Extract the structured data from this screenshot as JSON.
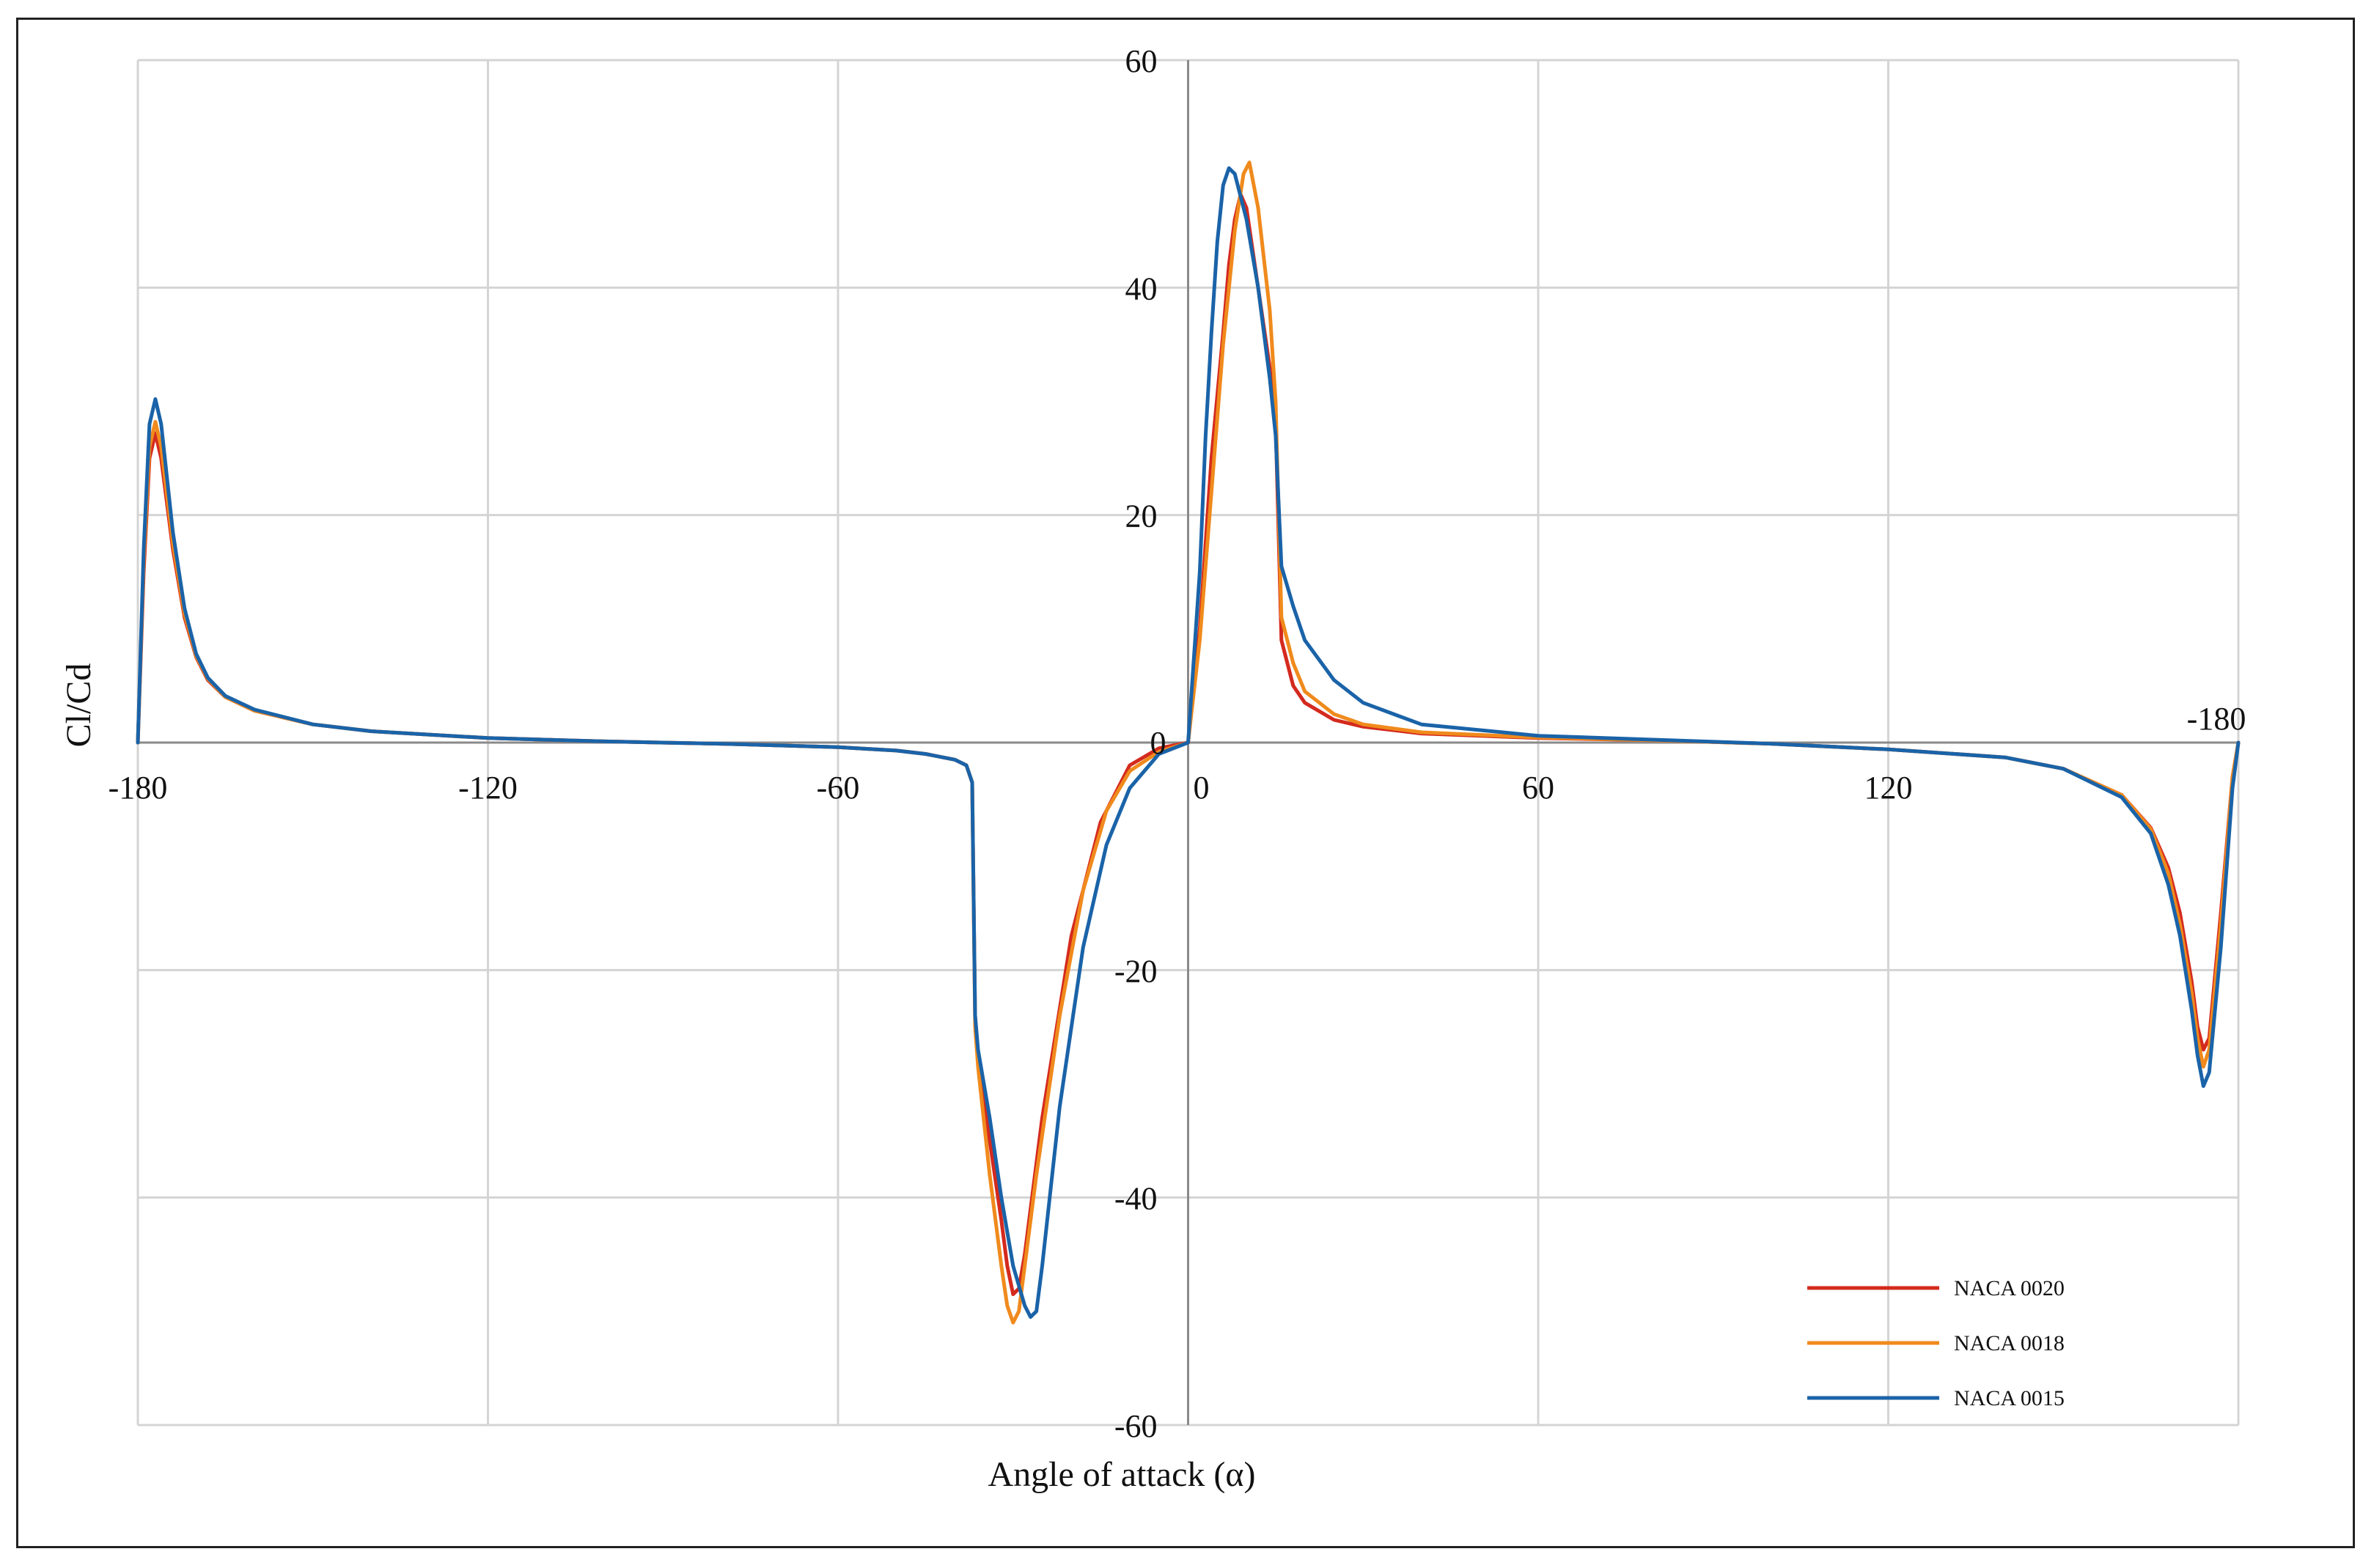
{
  "chart_data": {
    "type": "line",
    "title": "",
    "xlabel": "Angle of attack (α)",
    "ylabel": "Cl/Cd",
    "xlim": [
      -180,
      180
    ],
    "ylim": [
      -60,
      60
    ],
    "grid": true,
    "legend_position": "bottom-right",
    "x_ticks": [
      {
        "value": -180,
        "label": "-180"
      },
      {
        "value": -120,
        "label": "-120"
      },
      {
        "value": -60,
        "label": "-60"
      },
      {
        "value": 0,
        "label": "0"
      },
      {
        "value": 60,
        "label": "60"
      },
      {
        "value": 120,
        "label": "120"
      }
    ],
    "x_end_label": "-180",
    "y_ticks": [
      {
        "value": 60,
        "label": "60"
      },
      {
        "value": 40,
        "label": "40"
      },
      {
        "value": 20,
        "label": "20"
      },
      {
        "value": 0,
        "label": "0"
      },
      {
        "value": -20,
        "label": "-20"
      },
      {
        "value": -40,
        "label": "-40"
      },
      {
        "value": -60,
        "label": "-60"
      }
    ],
    "series": [
      {
        "name": "NACA 0020",
        "color": "#d42a1e",
        "points": [
          [
            -180,
            0
          ],
          [
            -179,
            15
          ],
          [
            -178,
            25
          ],
          [
            -177,
            27.2
          ],
          [
            -176,
            25
          ],
          [
            -174,
            17
          ],
          [
            -172,
            11
          ],
          [
            -170,
            7.5
          ],
          [
            -168,
            5.5
          ],
          [
            -165,
            4
          ],
          [
            -160,
            2.8
          ],
          [
            -150,
            1.6
          ],
          [
            -140,
            1.0
          ],
          [
            -120,
            0.4
          ],
          [
            -100,
            0.1
          ],
          [
            -80,
            -0.1
          ],
          [
            -60,
            -0.4
          ],
          [
            -50,
            -0.7
          ],
          [
            -45,
            -1.0
          ],
          [
            -40,
            -1.5
          ],
          [
            -38,
            -2.0
          ],
          [
            -37,
            -3.5
          ],
          [
            -36.5,
            -24
          ],
          [
            -36,
            -27.5
          ],
          [
            -34,
            -35
          ],
          [
            -32,
            -42
          ],
          [
            -31,
            -46
          ],
          [
            -30,
            -48.5
          ],
          [
            -29,
            -48
          ],
          [
            -28,
            -45
          ],
          [
            -25,
            -33
          ],
          [
            -20,
            -17
          ],
          [
            -15,
            -7
          ],
          [
            -10,
            -2
          ],
          [
            -5,
            -0.5
          ],
          [
            0,
            0
          ],
          [
            2,
            10
          ],
          [
            4,
            25
          ],
          [
            6,
            36
          ],
          [
            7,
            42
          ],
          [
            8,
            46
          ],
          [
            9,
            48.2
          ],
          [
            10,
            47
          ],
          [
            12,
            40
          ],
          [
            14,
            33
          ],
          [
            15,
            28
          ],
          [
            16,
            9
          ],
          [
            18,
            5
          ],
          [
            20,
            3.5
          ],
          [
            25,
            2.0
          ],
          [
            30,
            1.4
          ],
          [
            40,
            0.8
          ],
          [
            60,
            0.4
          ],
          [
            80,
            0.2
          ],
          [
            100,
            -0.1
          ],
          [
            120,
            -0.6
          ],
          [
            140,
            -1.3
          ],
          [
            150,
            -2.3
          ],
          [
            160,
            -4.6
          ],
          [
            165,
            -7.5
          ],
          [
            168,
            -11
          ],
          [
            170,
            -15
          ],
          [
            172,
            -21
          ],
          [
            173,
            -25
          ],
          [
            174,
            -27
          ],
          [
            175,
            -26
          ],
          [
            177,
            -15
          ],
          [
            179,
            -3
          ],
          [
            180,
            0
          ]
        ]
      },
      {
        "name": "NACA 0018",
        "color": "#f08a1c",
        "points": [
          [
            -180,
            0
          ],
          [
            -179,
            16
          ],
          [
            -178,
            26
          ],
          [
            -177,
            28.2
          ],
          [
            -176,
            26
          ],
          [
            -174,
            17.5
          ],
          [
            -172,
            11.3
          ],
          [
            -170,
            7.6
          ],
          [
            -168,
            5.6
          ],
          [
            -165,
            4
          ],
          [
            -160,
            2.8
          ],
          [
            -150,
            1.6
          ],
          [
            -140,
            1.0
          ],
          [
            -120,
            0.4
          ],
          [
            -100,
            0.1
          ],
          [
            -80,
            -0.1
          ],
          [
            -60,
            -0.4
          ],
          [
            -50,
            -0.7
          ],
          [
            -45,
            -1.0
          ],
          [
            -40,
            -1.5
          ],
          [
            -38,
            -2.0
          ],
          [
            -37,
            -3.5
          ],
          [
            -36.5,
            -25
          ],
          [
            -36,
            -28.5
          ],
          [
            -34,
            -38
          ],
          [
            -32,
            -46
          ],
          [
            -31,
            -49.5
          ],
          [
            -30,
            -51
          ],
          [
            -29,
            -50
          ],
          [
            -28,
            -46
          ],
          [
            -26,
            -38
          ],
          [
            -22,
            -24
          ],
          [
            -18,
            -13
          ],
          [
            -14,
            -6
          ],
          [
            -10,
            -2.5
          ],
          [
            -5,
            -0.8
          ],
          [
            0,
            0
          ],
          [
            2,
            9
          ],
          [
            4,
            22
          ],
          [
            6,
            35
          ],
          [
            8,
            45
          ],
          [
            9.5,
            50
          ],
          [
            10.5,
            51
          ],
          [
            12,
            47
          ],
          [
            14,
            38
          ],
          [
            15,
            30
          ],
          [
            16,
            11
          ],
          [
            18,
            7
          ],
          [
            20,
            4.5
          ],
          [
            25,
            2.5
          ],
          [
            30,
            1.6
          ],
          [
            40,
            0.9
          ],
          [
            60,
            0.45
          ],
          [
            80,
            0.2
          ],
          [
            100,
            -0.1
          ],
          [
            120,
            -0.6
          ],
          [
            140,
            -1.3
          ],
          [
            150,
            -2.3
          ],
          [
            160,
            -4.6
          ],
          [
            165,
            -7.6
          ],
          [
            168,
            -11.5
          ],
          [
            170,
            -16
          ],
          [
            172,
            -22
          ],
          [
            173,
            -26
          ],
          [
            174,
            -28.5
          ],
          [
            175,
            -27
          ],
          [
            177,
            -16
          ],
          [
            179,
            -3
          ],
          [
            180,
            0
          ]
        ]
      },
      {
        "name": "NACA 0015",
        "color": "#1a63a8",
        "points": [
          [
            -180,
            0
          ],
          [
            -179,
            17
          ],
          [
            -178,
            28
          ],
          [
            -177,
            30.2
          ],
          [
            -176,
            28
          ],
          [
            -174,
            18.5
          ],
          [
            -172,
            11.8
          ],
          [
            -170,
            7.8
          ],
          [
            -168,
            5.7
          ],
          [
            -165,
            4.1
          ],
          [
            -160,
            2.9
          ],
          [
            -150,
            1.6
          ],
          [
            -140,
            1.0
          ],
          [
            -120,
            0.4
          ],
          [
            -100,
            0.1
          ],
          [
            -80,
            -0.1
          ],
          [
            -60,
            -0.4
          ],
          [
            -50,
            -0.7
          ],
          [
            -45,
            -1.0
          ],
          [
            -40,
            -1.5
          ],
          [
            -38,
            -2.0
          ],
          [
            -37,
            -3.5
          ],
          [
            -36.5,
            -24
          ],
          [
            -36,
            -27
          ],
          [
            -34,
            -33
          ],
          [
            -32,
            -40
          ],
          [
            -30,
            -46
          ],
          [
            -28,
            -49.5
          ],
          [
            -27,
            -50.5
          ],
          [
            -26,
            -50
          ],
          [
            -25,
            -46
          ],
          [
            -22,
            -32
          ],
          [
            -18,
            -18
          ],
          [
            -14,
            -9
          ],
          [
            -10,
            -4
          ],
          [
            -5,
            -1
          ],
          [
            0,
            0
          ],
          [
            2,
            15
          ],
          [
            3,
            27
          ],
          [
            4,
            36
          ],
          [
            5,
            44
          ],
          [
            6,
            49
          ],
          [
            7,
            50.5
          ],
          [
            8,
            50
          ],
          [
            10,
            46
          ],
          [
            12,
            40
          ],
          [
            14,
            32
          ],
          [
            15,
            27
          ],
          [
            16,
            15.5
          ],
          [
            18,
            12
          ],
          [
            20,
            9
          ],
          [
            25,
            5.5
          ],
          [
            30,
            3.5
          ],
          [
            40,
            1.6
          ],
          [
            60,
            0.6
          ],
          [
            80,
            0.25
          ],
          [
            100,
            -0.1
          ],
          [
            120,
            -0.6
          ],
          [
            140,
            -1.3
          ],
          [
            150,
            -2.3
          ],
          [
            160,
            -4.8
          ],
          [
            165,
            -8
          ],
          [
            168,
            -12.5
          ],
          [
            170,
            -17
          ],
          [
            172,
            -23.5
          ],
          [
            173,
            -27.5
          ],
          [
            174,
            -30.2
          ],
          [
            175,
            -29
          ],
          [
            177,
            -18
          ],
          [
            179,
            -4
          ],
          [
            180,
            0
          ]
        ]
      }
    ]
  }
}
